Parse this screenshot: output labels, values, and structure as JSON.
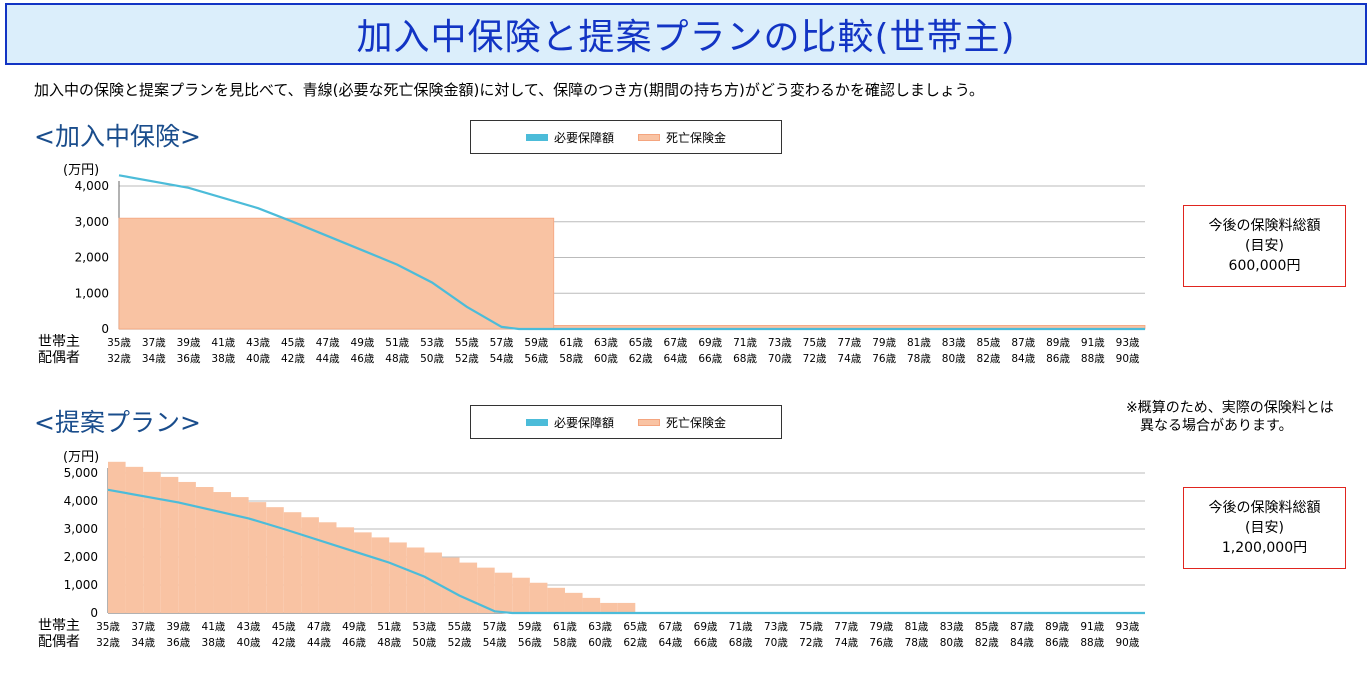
{
  "page": {
    "title": "加入中保険と提案プランの比較(世帯主)",
    "description": "加入中の保険と提案プランを見比べて、青線(必要な死亡保険金額)に対して、保障のつき方(期間の持ち方)がどう変わるかを確認しましょう。",
    "note_line1": "※概算のため、実際の保険料とは",
    "note_line2": "異なる場合があります。"
  },
  "colors": {
    "title_border": "#1234c4",
    "title_background": "#dbeefb",
    "required_line": "#4cbcd9",
    "death_benefit_fill": "#f9c3a3",
    "death_benefit_stroke": "#f4a57f",
    "premium_border": "#e0251f",
    "section_title": "#1a4d8c"
  },
  "chart_data": [
    {
      "type": "area",
      "title": "<加入中保険>",
      "ylabel": "(万円)",
      "ylim": [
        0,
        4000
      ],
      "ytick_labels": [
        "0",
        "1,000",
        "2,000",
        "3,000",
        "4,000"
      ],
      "legend": [
        "必要保障額",
        "死亡保険金"
      ],
      "legend_placement": "top-center",
      "row_labels": [
        "世帯主",
        "配偶者"
      ],
      "x_ages_householder": [
        "35歳",
        "37歳",
        "39歳",
        "41歳",
        "43歳",
        "45歳",
        "47歳",
        "49歳",
        "51歳",
        "53歳",
        "55歳",
        "57歳",
        "59歳",
        "61歳",
        "63歳",
        "65歳",
        "67歳",
        "69歳",
        "71歳",
        "73歳",
        "75歳",
        "77歳",
        "79歳",
        "81歳",
        "83歳",
        "85歳",
        "87歳",
        "89歳",
        "91歳",
        "93歳"
      ],
      "x_ages_spouse": [
        "32歳",
        "34歳",
        "36歳",
        "38歳",
        "40歳",
        "42歳",
        "44歳",
        "46歳",
        "48歳",
        "50歳",
        "52歳",
        "54歳",
        "56歳",
        "58歳",
        "60歳",
        "62歳",
        "64歳",
        "66歳",
        "68歳",
        "70歳",
        "72歳",
        "74歳",
        "76歳",
        "78歳",
        "80歳",
        "82歳",
        "84歳",
        "86歳",
        "88歳",
        "90歳"
      ],
      "age_start": 35,
      "age_end": 94,
      "series": [
        {
          "name": "必要保障額",
          "kind": "line",
          "points": [
            [
              35,
              4300
            ],
            [
              39,
              3950
            ],
            [
              43,
              3380
            ],
            [
              45,
              3000
            ],
            [
              49,
              2200
            ],
            [
              51,
              1800
            ],
            [
              53,
              1300
            ],
            [
              55,
              620
            ],
            [
              57,
              60
            ],
            [
              58,
              0
            ],
            [
              94,
              0
            ]
          ]
        },
        {
          "name": "死亡保険金",
          "kind": "area",
          "steps": [
            {
              "from": 35,
              "to": 60,
              "value": 3100
            },
            {
              "from": 60,
              "to": 94,
              "value": 100
            }
          ]
        }
      ],
      "premium_total": {
        "line1": "今後の保険料総額",
        "line2": "(目安)",
        "amount": "600,000円"
      }
    },
    {
      "type": "area",
      "title": "<提案プラン>",
      "ylabel": "(万円)",
      "ylim": [
        0,
        5000
      ],
      "ytick_labels": [
        "0",
        "1,000",
        "2,000",
        "3,000",
        "4,000",
        "5,000"
      ],
      "legend": [
        "必要保障額",
        "死亡保険金"
      ],
      "legend_placement": "top-center",
      "row_labels": [
        "世帯主",
        "配偶者"
      ],
      "x_ages_householder": [
        "35歳",
        "37歳",
        "39歳",
        "41歳",
        "43歳",
        "45歳",
        "47歳",
        "49歳",
        "51歳",
        "53歳",
        "55歳",
        "57歳",
        "59歳",
        "61歳",
        "63歳",
        "65歳",
        "67歳",
        "69歳",
        "71歳",
        "73歳",
        "75歳",
        "77歳",
        "79歳",
        "81歳",
        "83歳",
        "85歳",
        "87歳",
        "89歳",
        "91歳",
        "93歳"
      ],
      "x_ages_spouse": [
        "32歳",
        "34歳",
        "36歳",
        "38歳",
        "40歳",
        "42歳",
        "44歳",
        "46歳",
        "48歳",
        "50歳",
        "52歳",
        "54歳",
        "56歳",
        "58歳",
        "60歳",
        "62歳",
        "64歳",
        "66歳",
        "68歳",
        "70歳",
        "72歳",
        "74歳",
        "76歳",
        "78歳",
        "80歳",
        "82歳",
        "84歳",
        "86歳",
        "88歳",
        "90歳"
      ],
      "age_start": 35,
      "age_end": 94,
      "series": [
        {
          "name": "必要保障額",
          "kind": "line",
          "points": [
            [
              35,
              4400
            ],
            [
              39,
              3950
            ],
            [
              43,
              3380
            ],
            [
              45,
              3000
            ],
            [
              49,
              2200
            ],
            [
              51,
              1800
            ],
            [
              53,
              1300
            ],
            [
              55,
              620
            ],
            [
              57,
              60
            ],
            [
              58,
              0
            ],
            [
              94,
              0
            ]
          ]
        },
        {
          "name": "死亡保険金",
          "kind": "steps",
          "steps": [
            {
              "from": 35,
              "to": 36,
              "value": 5400
            },
            {
              "from": 36,
              "to": 37,
              "value": 5220
            },
            {
              "from": 37,
              "to": 38,
              "value": 5040
            },
            {
              "from": 38,
              "to": 39,
              "value": 4860
            },
            {
              "from": 39,
              "to": 40,
              "value": 4680
            },
            {
              "from": 40,
              "to": 41,
              "value": 4500
            },
            {
              "from": 41,
              "to": 42,
              "value": 4320
            },
            {
              "from": 42,
              "to": 43,
              "value": 4140
            },
            {
              "from": 43,
              "to": 44,
              "value": 3960
            },
            {
              "from": 44,
              "to": 45,
              "value": 3780
            },
            {
              "from": 45,
              "to": 46,
              "value": 3600
            },
            {
              "from": 46,
              "to": 47,
              "value": 3420
            },
            {
              "from": 47,
              "to": 48,
              "value": 3240
            },
            {
              "from": 48,
              "to": 49,
              "value": 3060
            },
            {
              "from": 49,
              "to": 50,
              "value": 2880
            },
            {
              "from": 50,
              "to": 51,
              "value": 2700
            },
            {
              "from": 51,
              "to": 52,
              "value": 2520
            },
            {
              "from": 52,
              "to": 53,
              "value": 2340
            },
            {
              "from": 53,
              "to": 54,
              "value": 2160
            },
            {
              "from": 54,
              "to": 55,
              "value": 1980
            },
            {
              "from": 55,
              "to": 56,
              "value": 1800
            },
            {
              "from": 56,
              "to": 57,
              "value": 1620
            },
            {
              "from": 57,
              "to": 58,
              "value": 1440
            },
            {
              "from": 58,
              "to": 59,
              "value": 1260
            },
            {
              "from": 59,
              "to": 60,
              "value": 1080
            },
            {
              "from": 60,
              "to": 61,
              "value": 900
            },
            {
              "from": 61,
              "to": 62,
              "value": 720
            },
            {
              "from": 62,
              "to": 63,
              "value": 540
            },
            {
              "from": 63,
              "to": 64,
              "value": 360
            },
            {
              "from": 64,
              "to": 65,
              "value": 360
            }
          ]
        }
      ],
      "premium_total": {
        "line1": "今後の保険料総額",
        "line2": "(目安)",
        "amount": "1,200,000円"
      }
    }
  ]
}
